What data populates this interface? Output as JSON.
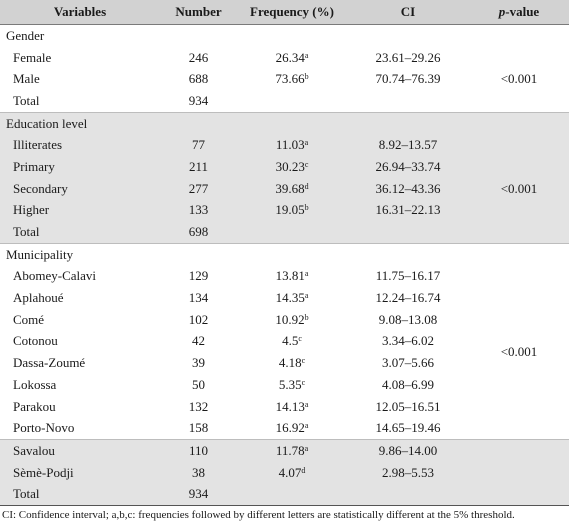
{
  "table": {
    "headers": [
      "Variables",
      "Number",
      "Frequency (%)",
      "CI",
      "-value"
    ],
    "p_label": "p",
    "gender": {
      "title": "Gender",
      "rows": [
        {
          "name": "Female",
          "number": "246",
          "freq": "26.34",
          "sup": "a",
          "ci": "23.61–29.26"
        },
        {
          "name": "Male",
          "number": "688",
          "freq": "73.66",
          "sup": "b",
          "ci": "70.74–76.39"
        },
        {
          "name": "Total",
          "number": "934",
          "freq": "",
          "sup": "",
          "ci": ""
        }
      ],
      "p": "<0.001"
    },
    "education": {
      "title": "Education level",
      "rows": [
        {
          "name": "Illiterates",
          "number": "77",
          "freq": "11.03",
          "sup": "a",
          "ci": "8.92–13.57"
        },
        {
          "name": "Primary",
          "number": "211",
          "freq": "30.23",
          "sup": "c",
          "ci": "26.94–33.74"
        },
        {
          "name": "Secondary",
          "number": "277",
          "freq": "39.68",
          "sup": "d",
          "ci": "36.12–43.36"
        },
        {
          "name": "Higher",
          "number": "133",
          "freq": "19.05",
          "sup": "b",
          "ci": "16.31–22.13"
        },
        {
          "name": "Total",
          "number": "698",
          "freq": "",
          "sup": "",
          "ci": ""
        }
      ],
      "p": "<0.001"
    },
    "municipality": {
      "title": "Municipality",
      "rows": [
        {
          "name": "Abomey-Calavi",
          "number": "129",
          "freq": "13.81",
          "sup": "a",
          "ci": "11.75–16.17"
        },
        {
          "name": "Aplahoué",
          "number": "134",
          "freq": "14.35",
          "sup": "a",
          "ci": "12.24–16.74"
        },
        {
          "name": "Comé",
          "number": "102",
          "freq": "10.92",
          "sup": "b",
          "ci": "9.08–13.08"
        },
        {
          "name": "Cotonou",
          "number": "42",
          "freq": "4.5",
          "sup": "c",
          "ci": "3.34–6.02"
        },
        {
          "name": "Dassa-Zoumé",
          "number": "39",
          "freq": "4.18",
          "sup": "c",
          "ci": "3.07–5.66"
        },
        {
          "name": "Lokossa",
          "number": "50",
          "freq": "5.35",
          "sup": "c",
          "ci": "4.08–6.99"
        },
        {
          "name": "Parakou",
          "number": "132",
          "freq": "14.13",
          "sup": "a",
          "ci": "12.05–16.51"
        },
        {
          "name": "Porto-Novo",
          "number": "158",
          "freq": "16.92",
          "sup": "a",
          "ci": "14.65–19.46"
        },
        {
          "name": "Savalou",
          "number": "110",
          "freq": "11.78",
          "sup": "a",
          "ci": "9.86–14.00"
        },
        {
          "name": "Sèmè-Podji",
          "number": "38",
          "freq": "4.07",
          "sup": "d",
          "ci": "2.98–5.53"
        },
        {
          "name": "Total",
          "number": "934",
          "freq": "",
          "sup": "",
          "ci": ""
        }
      ],
      "p": "<0.001"
    },
    "footnote": "CI: Confidence interval; a,b,c: frequencies followed by different letters are statistically different at the 5% threshold."
  }
}
